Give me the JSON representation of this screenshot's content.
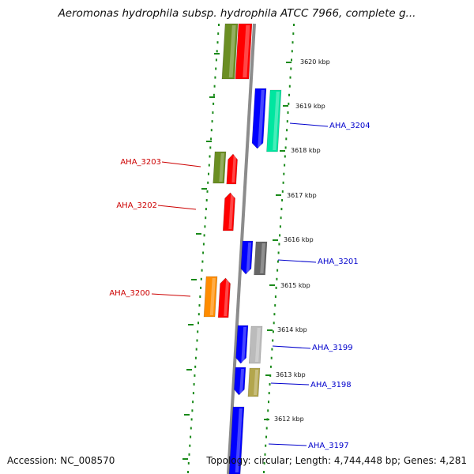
{
  "title": "Aeromonas hydrophila subsp. hydrophila ATCC 7966, complete g...",
  "accession": "Accession: NC_008570",
  "topology": "Topology: circular; Length: 4,744,448 bp; Genes: 4,281",
  "colors": {
    "backbone": "#8c8c8c",
    "dots": "#1a8a1a",
    "forward_label": "#cc0000",
    "reverse_label": "#0000cc"
  },
  "ticks": [
    "3620 kbp",
    "3619 kbp",
    "3618 kbp",
    "3617 kbp",
    "3616 kbp",
    "3615 kbp",
    "3614 kbp",
    "3613 kbp",
    "3612 kbp"
  ],
  "gene_labels": {
    "forward": [
      "AHA_3203",
      "AHA_3202",
      "AHA_3200"
    ],
    "reverse": [
      "AHA_3204",
      "AHA_3201",
      "AHA_3199",
      "AHA_3198",
      "AHA_3197"
    ]
  }
}
